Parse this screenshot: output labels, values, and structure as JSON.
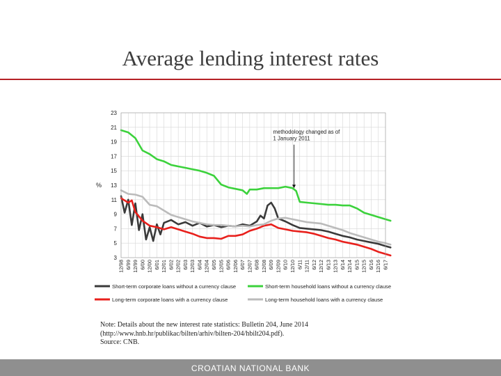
{
  "slide": {
    "title": "Average lending interest rates",
    "notes": [
      "Note: Details about the new interest rate statistics: Bulletin 204, June 2014",
      "(http://www.hnb.hr/publikac/bilten/arhiv/bilten-204/hbilt204.pdf).",
      "Source: CNB."
    ],
    "footer": "CROATIAN NATIONAL BANK"
  },
  "chart_data": {
    "type": "line",
    "title": "",
    "ylabel": "%",
    "ylim": [
      3,
      23
    ],
    "yticks": [
      3,
      5,
      7,
      9,
      11,
      13,
      15,
      17,
      19,
      21,
      23
    ],
    "grid": true,
    "legend": "bottom",
    "x_tick_labels": [
      "12/98",
      "6/99",
      "12/99",
      "6/00",
      "12/00",
      "6/01",
      "12/01",
      "6/02",
      "12/02",
      "6/03",
      "12/03",
      "6/04",
      "12/04",
      "6/05",
      "12/05",
      "6/06",
      "12/06",
      "6/07",
      "12/07",
      "6/08",
      "12/08",
      "6/09",
      "12/09",
      "6/10",
      "12/10",
      "6/11",
      "12/11",
      "6/12",
      "12/12",
      "6/13",
      "12/13",
      "6/14",
      "12/14",
      "6/15",
      "12/15",
      "6/16",
      "12/16",
      "6/17"
    ],
    "annotation": {
      "lines": [
        "methodology changed as of",
        "1 January 2011"
      ],
      "x_index": 24.2,
      "y": 12.5
    },
    "series": [
      {
        "name": "Short-term corporate loans without a currency clause",
        "color": "#3a3a3a",
        "points": [
          [
            0,
            11.5
          ],
          [
            0.5,
            9.2
          ],
          [
            1,
            11
          ],
          [
            1.5,
            7.5
          ],
          [
            2,
            10.5
          ],
          [
            2.5,
            6.8
          ],
          [
            3,
            9
          ],
          [
            3.5,
            5.5
          ],
          [
            4,
            7.2
          ],
          [
            4.5,
            5.3
          ],
          [
            5,
            7.6
          ],
          [
            5.5,
            6.2
          ],
          [
            6,
            7.8
          ],
          [
            7,
            8.2
          ],
          [
            8,
            7.6
          ],
          [
            9,
            7.9
          ],
          [
            10,
            7.4
          ],
          [
            11,
            7.8
          ],
          [
            12,
            7.3
          ],
          [
            13,
            7.5
          ],
          [
            14,
            7.2
          ],
          [
            15,
            7.4
          ],
          [
            16,
            7.3
          ],
          [
            17,
            7.6
          ],
          [
            18,
            7.4
          ],
          [
            19,
            8
          ],
          [
            19.5,
            8.8
          ],
          [
            20,
            8.4
          ],
          [
            20.5,
            10.2
          ],
          [
            21,
            10.6
          ],
          [
            21.5,
            9.8
          ],
          [
            22,
            8.4
          ],
          [
            23,
            8
          ],
          [
            24,
            7.5
          ],
          [
            25,
            7.1
          ],
          [
            26,
            7
          ],
          [
            27,
            6.9
          ],
          [
            28,
            6.8
          ],
          [
            29,
            6.6
          ],
          [
            30,
            6.3
          ],
          [
            31,
            6
          ],
          [
            32,
            5.8
          ],
          [
            33,
            5.5
          ],
          [
            34,
            5.3
          ],
          [
            35,
            5.1
          ],
          [
            36,
            4.9
          ],
          [
            37,
            4.6
          ],
          [
            37.7,
            4.4
          ]
        ]
      },
      {
        "name": "Short-term household loans without a currency clause",
        "color": "#3cd23c",
        "points": [
          [
            0,
            20.6
          ],
          [
            1,
            20.3
          ],
          [
            2,
            19.5
          ],
          [
            3,
            17.8
          ],
          [
            4,
            17.3
          ],
          [
            5,
            16.6
          ],
          [
            6,
            16.3
          ],
          [
            7,
            15.8
          ],
          [
            8,
            15.6
          ],
          [
            9,
            15.4
          ],
          [
            10,
            15.2
          ],
          [
            11,
            15
          ],
          [
            12,
            14.7
          ],
          [
            13,
            14.3
          ],
          [
            14,
            13.1
          ],
          [
            15,
            12.7
          ],
          [
            16,
            12.5
          ],
          [
            17,
            12.3
          ],
          [
            17.6,
            11.8
          ],
          [
            18,
            12.4
          ],
          [
            19,
            12.4
          ],
          [
            20,
            12.6
          ],
          [
            21,
            12.6
          ],
          [
            22,
            12.6
          ],
          [
            23,
            12.8
          ],
          [
            24,
            12.6
          ],
          [
            24.5,
            12.2
          ],
          [
            25,
            10.7
          ],
          [
            26,
            10.6
          ],
          [
            27,
            10.5
          ],
          [
            28,
            10.4
          ],
          [
            29,
            10.3
          ],
          [
            30,
            10.3
          ],
          [
            31,
            10.2
          ],
          [
            32,
            10.2
          ],
          [
            33,
            9.8
          ],
          [
            34,
            9.2
          ],
          [
            35,
            8.9
          ],
          [
            36,
            8.6
          ],
          [
            37,
            8.3
          ],
          [
            37.7,
            8.1
          ]
        ]
      },
      {
        "name": "Long-term corporate loans with a currency clause",
        "color": "#e8201c",
        "points": [
          [
            0,
            11.2
          ],
          [
            1,
            10.6
          ],
          [
            1.5,
            10.9
          ],
          [
            2,
            9.3
          ],
          [
            3,
            8.1
          ],
          [
            4,
            7.4
          ],
          [
            5,
            7.2
          ],
          [
            6,
            6.9
          ],
          [
            7,
            7.2
          ],
          [
            8,
            6.9
          ],
          [
            9,
            6.6
          ],
          [
            10,
            6.3
          ],
          [
            11,
            5.9
          ],
          [
            12,
            5.7
          ],
          [
            13,
            5.7
          ],
          [
            14,
            5.6
          ],
          [
            15,
            6
          ],
          [
            16,
            6
          ],
          [
            17,
            6.2
          ],
          [
            18,
            6.7
          ],
          [
            19,
            7
          ],
          [
            20,
            7.4
          ],
          [
            21,
            7.6
          ],
          [
            22,
            7.1
          ],
          [
            23,
            6.9
          ],
          [
            24,
            6.7
          ],
          [
            25,
            6.6
          ],
          [
            26,
            6.5
          ],
          [
            27,
            6.3
          ],
          [
            28,
            6
          ],
          [
            29,
            5.7
          ],
          [
            30,
            5.5
          ],
          [
            31,
            5.2
          ],
          [
            32,
            5
          ],
          [
            33,
            4.8
          ],
          [
            34,
            4.5
          ],
          [
            35,
            4.2
          ],
          [
            36,
            3.8
          ],
          [
            37,
            3.5
          ],
          [
            37.7,
            3.3
          ]
        ]
      },
      {
        "name": "Long-term household loans with a currency clause",
        "color": "#bbbbbb",
        "points": [
          [
            0,
            12.3
          ],
          [
            1,
            11.8
          ],
          [
            2,
            11.7
          ],
          [
            3,
            11.4
          ],
          [
            4,
            10.3
          ],
          [
            5,
            10.1
          ],
          [
            6,
            9.5
          ],
          [
            7,
            8.9
          ],
          [
            8,
            8.6
          ],
          [
            9,
            8.3
          ],
          [
            10,
            8
          ],
          [
            11,
            7.8
          ],
          [
            12,
            7.6
          ],
          [
            13,
            7.5
          ],
          [
            14,
            7.5
          ],
          [
            15,
            7.4
          ],
          [
            16,
            7.3
          ],
          [
            17,
            7.4
          ],
          [
            18,
            7.3
          ],
          [
            19,
            7.5
          ],
          [
            20,
            7.6
          ],
          [
            21,
            8.1
          ],
          [
            22,
            8.4
          ],
          [
            23,
            8.5
          ],
          [
            24,
            8.3
          ],
          [
            25,
            8.1
          ],
          [
            26,
            7.9
          ],
          [
            27,
            7.8
          ],
          [
            28,
            7.7
          ],
          [
            29,
            7.4
          ],
          [
            30,
            7.1
          ],
          [
            31,
            6.8
          ],
          [
            32,
            6.4
          ],
          [
            33,
            6.1
          ],
          [
            34,
            5.8
          ],
          [
            35,
            5.5
          ],
          [
            36,
            5.2
          ],
          [
            37,
            5
          ],
          [
            37.7,
            4.8
          ]
        ]
      }
    ]
  }
}
